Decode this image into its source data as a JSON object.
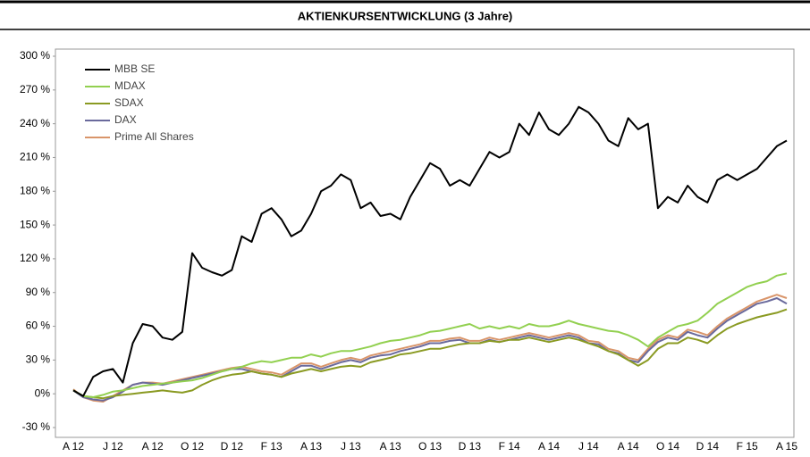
{
  "chart_data": {
    "type": "line",
    "title": "AKTIENKURSENTWICKLUNG (3 Jahre)",
    "categories": [
      "A 12",
      null,
      null,
      null,
      "J 12",
      null,
      null,
      null,
      "A 12",
      null,
      null,
      null,
      "O 12",
      null,
      null,
      null,
      "D 12",
      null,
      null,
      null,
      "F 13",
      null,
      null,
      null,
      "A 13",
      null,
      null,
      null,
      "J 13",
      null,
      null,
      null,
      "A 13",
      null,
      null,
      null,
      "O 13",
      null,
      null,
      null,
      "D 13",
      null,
      null,
      null,
      "F 14",
      null,
      null,
      null,
      "A 14",
      null,
      null,
      null,
      "J 14",
      null,
      null,
      null,
      "A 14",
      null,
      null,
      null,
      "O 14",
      null,
      null,
      null,
      "D 14",
      null,
      null,
      null,
      "F 15",
      null,
      null,
      null,
      "A 15"
    ],
    "ylim": [
      -30,
      300
    ],
    "yticks": [
      {
        "value": -30,
        "label": "-30 %"
      },
      {
        "value": 0,
        "label": "0%"
      },
      {
        "value": 30,
        "label": "30 %"
      },
      {
        "value": 60,
        "label": "60 %"
      },
      {
        "value": 90,
        "label": "90 %"
      },
      {
        "value": 120,
        "label": "120 %"
      },
      {
        "value": 150,
        "label": "150 %"
      },
      {
        "value": 180,
        "label": "180 %"
      },
      {
        "value": 210,
        "label": "210 %"
      },
      {
        "value": 240,
        "label": "240 %"
      },
      {
        "value": 270,
        "label": "270 %"
      },
      {
        "value": 300,
        "label": "300 %"
      }
    ],
    "legend": "upper left",
    "series": [
      {
        "name": "MBB SE",
        "color": "#000000",
        "values": [
          3,
          -2,
          15,
          20,
          22,
          10,
          45,
          62,
          60,
          50,
          48,
          55,
          125,
          112,
          108,
          105,
          110,
          140,
          135,
          160,
          165,
          155,
          140,
          145,
          160,
          180,
          185,
          195,
          190,
          165,
          170,
          158,
          160,
          155,
          175,
          190,
          205,
          200,
          185,
          190,
          185,
          200,
          215,
          210,
          215,
          240,
          230,
          250,
          235,
          230,
          240,
          255,
          250,
          240,
          225,
          220,
          245,
          235,
          240,
          165,
          175,
          170,
          185,
          175,
          170,
          190,
          195,
          190,
          195,
          200,
          210,
          220,
          225
        ]
      },
      {
        "name": "MDAX",
        "color": "#92d050",
        "values": [
          3,
          -2,
          -3,
          -1,
          2,
          3,
          5,
          7,
          8,
          9,
          10,
          11,
          12,
          14,
          17,
          20,
          22,
          24,
          27,
          29,
          28,
          30,
          32,
          32,
          35,
          33,
          36,
          38,
          38,
          40,
          42,
          45,
          47,
          48,
          50,
          52,
          55,
          56,
          58,
          60,
          62,
          58,
          60,
          58,
          60,
          58,
          62,
          60,
          60,
          62,
          65,
          62,
          60,
          58,
          56,
          55,
          52,
          48,
          42,
          50,
          55,
          60,
          62,
          65,
          72,
          80,
          85,
          90,
          95,
          98,
          100,
          105,
          107
        ]
      },
      {
        "name": "SDAX",
        "color": "#8a9a22",
        "values": [
          3,
          -2,
          -3,
          -4,
          -2,
          -1,
          0,
          1,
          2,
          3,
          2,
          1,
          3,
          8,
          12,
          15,
          17,
          18,
          20,
          18,
          17,
          15,
          18,
          20,
          22,
          20,
          22,
          24,
          25,
          24,
          28,
          30,
          32,
          35,
          36,
          38,
          40,
          40,
          42,
          44,
          45,
          45,
          47,
          46,
          48,
          48,
          50,
          48,
          46,
          48,
          50,
          48,
          45,
          42,
          38,
          35,
          30,
          25,
          30,
          40,
          45,
          45,
          50,
          48,
          45,
          52,
          58,
          62,
          65,
          68,
          70,
          72,
          75
        ]
      },
      {
        "name": "DAX",
        "color": "#6a6a9c",
        "values": [
          3,
          -3,
          -5,
          -6,
          -3,
          2,
          8,
          10,
          9,
          8,
          10,
          12,
          14,
          16,
          18,
          20,
          22,
          22,
          20,
          18,
          17,
          15,
          20,
          25,
          25,
          22,
          25,
          28,
          30,
          28,
          32,
          34,
          35,
          38,
          40,
          42,
          45,
          45,
          47,
          48,
          45,
          45,
          48,
          46,
          48,
          50,
          52,
          50,
          48,
          50,
          52,
          50,
          45,
          44,
          38,
          36,
          30,
          28,
          38,
          46,
          50,
          48,
          55,
          52,
          50,
          58,
          65,
          70,
          75,
          80,
          82,
          85,
          80
        ]
      },
      {
        "name": "Prime All Shares",
        "color": "#d9956a",
        "values": [
          4,
          -3,
          -6,
          -7,
          -2,
          3,
          8,
          10,
          10,
          9,
          11,
          13,
          15,
          17,
          19,
          21,
          23,
          24,
          22,
          20,
          19,
          17,
          22,
          27,
          27,
          24,
          27,
          30,
          32,
          30,
          34,
          36,
          38,
          40,
          42,
          44,
          47,
          47,
          49,
          50,
          47,
          47,
          50,
          48,
          50,
          52,
          54,
          52,
          50,
          52,
          54,
          52,
          47,
          46,
          40,
          38,
          32,
          30,
          40,
          48,
          52,
          50,
          57,
          55,
          52,
          60,
          67,
          72,
          77,
          82,
          85,
          88,
          85
        ]
      }
    ]
  }
}
